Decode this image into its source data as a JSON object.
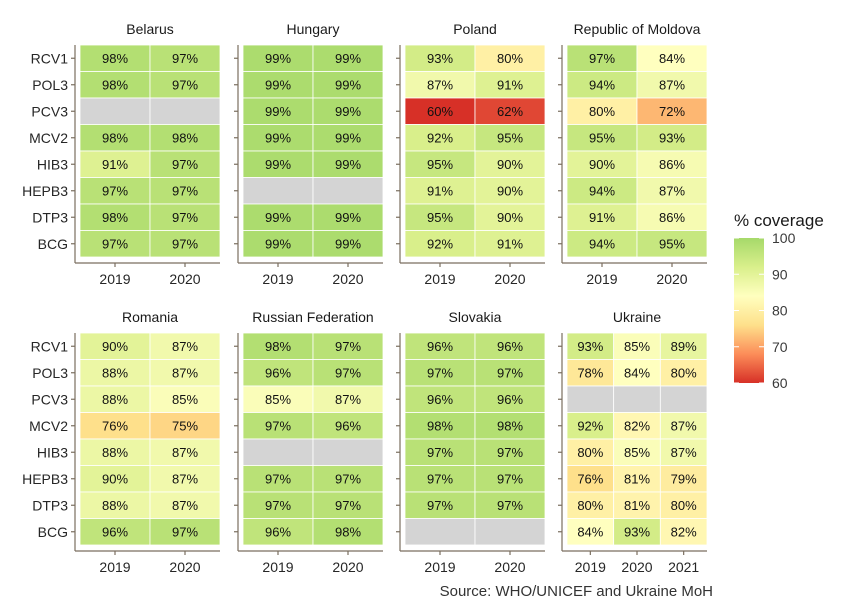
{
  "chart_data": {
    "type": "heatmap",
    "value_format": "percent",
    "caption": "Source: WHO/UNICEF and Ukraine MoH",
    "rows": [
      "RCV1",
      "POL3",
      "PCV3",
      "MCV2",
      "HIB3",
      "HEPB3",
      "DTP3",
      "BCG"
    ],
    "legend": {
      "title": "% coverage",
      "ticks": [
        100,
        90,
        80,
        70,
        60
      ],
      "range": [
        60,
        100
      ],
      "colors": [
        "#d73027",
        "#fc8d59",
        "#fee08b",
        "#ffffbf",
        "#d9ef8b",
        "#a6d96a"
      ]
    },
    "missing_color": "#d4d4d4",
    "facets": [
      {
        "title": "Belarus",
        "columns": [
          "2019",
          "2020"
        ],
        "values": [
          [
            98,
            97
          ],
          [
            98,
            97
          ],
          [
            null,
            null
          ],
          [
            98,
            98
          ],
          [
            91,
            97
          ],
          [
            97,
            97
          ],
          [
            98,
            97
          ],
          [
            97,
            97
          ]
        ]
      },
      {
        "title": "Hungary",
        "columns": [
          "2019",
          "2020"
        ],
        "values": [
          [
            99,
            99
          ],
          [
            99,
            99
          ],
          [
            99,
            99
          ],
          [
            99,
            99
          ],
          [
            99,
            99
          ],
          [
            null,
            null
          ],
          [
            99,
            99
          ],
          [
            99,
            99
          ]
        ]
      },
      {
        "title": "Poland",
        "columns": [
          "2019",
          "2020"
        ],
        "values": [
          [
            93,
            80
          ],
          [
            87,
            91
          ],
          [
            60,
            62
          ],
          [
            92,
            95
          ],
          [
            95,
            90
          ],
          [
            91,
            90
          ],
          [
            95,
            90
          ],
          [
            92,
            91
          ]
        ]
      },
      {
        "title": "Republic of Moldova",
        "columns": [
          "2019",
          "2020"
        ],
        "values": [
          [
            97,
            84
          ],
          [
            94,
            87
          ],
          [
            80,
            72
          ],
          [
            95,
            93
          ],
          [
            90,
            86
          ],
          [
            94,
            87
          ],
          [
            91,
            86
          ],
          [
            94,
            95
          ]
        ]
      },
      {
        "title": "Romania",
        "columns": [
          "2019",
          "2020"
        ],
        "values": [
          [
            90,
            87
          ],
          [
            88,
            87
          ],
          [
            88,
            85
          ],
          [
            76,
            75
          ],
          [
            88,
            87
          ],
          [
            90,
            87
          ],
          [
            88,
            87
          ],
          [
            96,
            97
          ]
        ]
      },
      {
        "title": "Russian Federation",
        "columns": [
          "2019",
          "2020"
        ],
        "values": [
          [
            98,
            97
          ],
          [
            96,
            97
          ],
          [
            85,
            87
          ],
          [
            97,
            96
          ],
          [
            null,
            null
          ],
          [
            97,
            97
          ],
          [
            97,
            97
          ],
          [
            96,
            98
          ]
        ]
      },
      {
        "title": "Slovakia",
        "columns": [
          "2019",
          "2020"
        ],
        "values": [
          [
            96,
            96
          ],
          [
            97,
            97
          ],
          [
            96,
            96
          ],
          [
            98,
            98
          ],
          [
            97,
            97
          ],
          [
            97,
            97
          ],
          [
            97,
            97
          ],
          [
            null,
            null
          ]
        ]
      },
      {
        "title": "Ukraine",
        "columns": [
          "2019",
          "2020",
          "2021"
        ],
        "values": [
          [
            93,
            85,
            89
          ],
          [
            78,
            84,
            80
          ],
          [
            null,
            null,
            null
          ],
          [
            92,
            82,
            87
          ],
          [
            80,
            85,
            87
          ],
          [
            76,
            81,
            79
          ],
          [
            80,
            81,
            80
          ],
          [
            84,
            93,
            82
          ]
        ]
      }
    ]
  }
}
